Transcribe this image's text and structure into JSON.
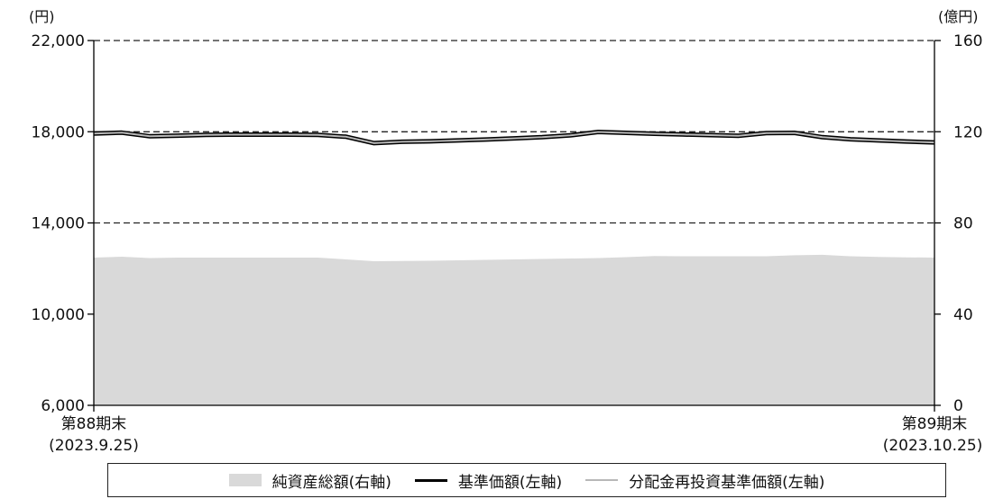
{
  "chart_data": {
    "type": "line",
    "left_unit": "(円)",
    "right_unit": "(億円)",
    "y_left": {
      "ylim": [
        6000,
        22000
      ],
      "ticks": [
        "6,000",
        "10,000",
        "14,000",
        "18,000",
        "22,000"
      ],
      "tick_values": [
        6000,
        10000,
        14000,
        18000,
        22000
      ]
    },
    "y_right": {
      "ylim": [
        0,
        160
      ],
      "ticks": [
        "0",
        "40",
        "80",
        "120",
        "160"
      ],
      "tick_values": [
        0,
        40,
        80,
        120,
        160
      ]
    },
    "gridlines_dashed_at_left": [
      14000,
      18000,
      22000
    ],
    "x_start_label": [
      "第88期末",
      "(2023.9.25)"
    ],
    "x_end_label": [
      "第89期末",
      "(2023.10.25)"
    ],
    "points": 31,
    "series": [
      {
        "name": "純資産総額(右軸)",
        "axis": "right",
        "kind": "area",
        "color": "#d9d9d9",
        "values": [
          64.8,
          65.2,
          64.6,
          64.8,
          64.8,
          64.8,
          64.8,
          64.8,
          64.8,
          64.0,
          63.2,
          63.3,
          63.4,
          63.6,
          63.8,
          64.0,
          64.2,
          64.4,
          64.6,
          65.0,
          65.5,
          65.4,
          65.4,
          65.4,
          65.4,
          65.8,
          66.0,
          65.4,
          65.1,
          64.9,
          64.8
        ]
      },
      {
        "name": "基準価額(左軸)",
        "axis": "left",
        "kind": "line",
        "color": "#000000",
        "values": [
          17920,
          17960,
          17800,
          17830,
          17860,
          17870,
          17870,
          17870,
          17860,
          17780,
          17500,
          17560,
          17580,
          17620,
          17660,
          17710,
          17760,
          17840,
          17990,
          17950,
          17910,
          17880,
          17850,
          17820,
          17940,
          17950,
          17760,
          17670,
          17620,
          17570,
          17530
        ]
      },
      {
        "name": "分配金再投資基準価額(左軸)",
        "axis": "left",
        "kind": "line",
        "color": "#b8b8b8",
        "values": [
          17920,
          17960,
          17800,
          17830,
          17860,
          17870,
          17870,
          17870,
          17860,
          17780,
          17500,
          17560,
          17580,
          17620,
          17660,
          17710,
          17760,
          17840,
          17990,
          17950,
          17910,
          17880,
          17850,
          17820,
          17940,
          17950,
          17760,
          17670,
          17620,
          17570,
          17530
        ]
      }
    ]
  },
  "legend": {
    "area_label": "純資産総額(右軸)",
    "nav_label": "基準価額(左軸)",
    "reinvest_label": "分配金再投資基準価額(左軸)"
  },
  "colors": {
    "area": "#d9d9d9",
    "nav": "#000000",
    "reinvest": "#b8b8b8",
    "axis": "#000000"
  }
}
